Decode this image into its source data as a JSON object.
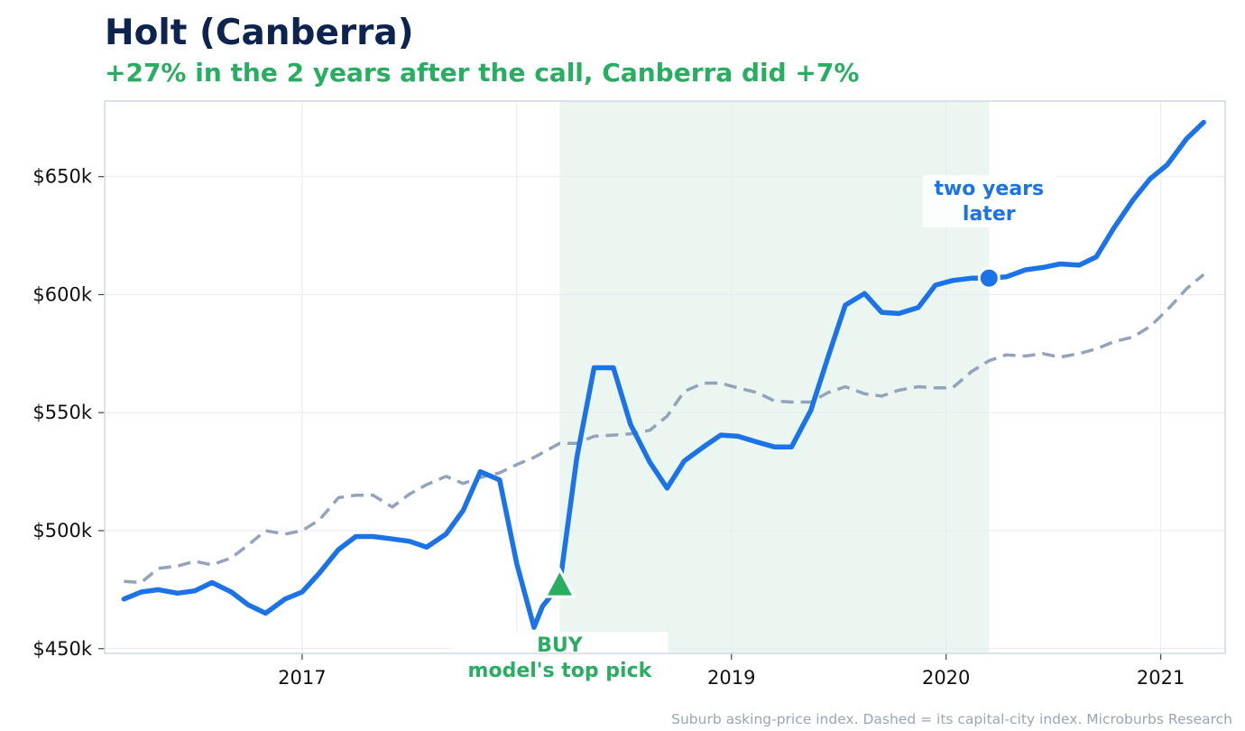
{
  "title": "Holt (Canberra)",
  "subtitle": "+27% in the 2 years after the call, Canberra did +7%",
  "footer": "Suburb asking-price index. Dashed = its capital-city index. Microburbs Research",
  "colors": {
    "suburb": "#1a73e8",
    "city": "#94a3bc",
    "buy": "#27ae60",
    "title": "#0d2350",
    "shade": "#eaf6ef"
  },
  "chart_data": {
    "type": "line",
    "x_format": "decimal-year",
    "xlim": [
      2016.08,
      2021.3
    ],
    "ylim": [
      448000,
      682000
    ],
    "x_ticks": [
      {
        "value": 2017,
        "label": "2017"
      },
      {
        "value": 2018,
        "label": "2018"
      },
      {
        "value": 2019,
        "label": "2019"
      },
      {
        "value": 2020,
        "label": "2020"
      },
      {
        "value": 2021,
        "label": "2021"
      }
    ],
    "y_ticks": [
      {
        "value": 450000,
        "label": "$450k"
      },
      {
        "value": 500000,
        "label": "$500k"
      },
      {
        "value": 550000,
        "label": "$550k"
      },
      {
        "value": 600000,
        "label": "$600k"
      },
      {
        "value": 650000,
        "label": "$650k"
      }
    ],
    "grid": true,
    "shaded_period": {
      "from": 2018.2,
      "to": 2020.2
    },
    "annotations": {
      "buy": {
        "x": 2018.2,
        "y": 477000,
        "label_line1": "BUY",
        "label_line2": "model's top pick"
      },
      "later": {
        "x": 2020.2,
        "y": 607000,
        "label_line1": "two years",
        "label_line2": "later"
      }
    },
    "series": [
      {
        "style": "solid",
        "x": [
          2016.17,
          2016.25,
          2016.33,
          2016.42,
          2016.5,
          2016.58,
          2016.67,
          2016.75,
          2016.83,
          2016.92,
          2017.0,
          2017.08,
          2017.17,
          2017.25,
          2017.33,
          2017.42,
          2017.5,
          2017.58,
          2017.67,
          2017.75,
          2017.83,
          2017.92,
          2018.0,
          2018.08,
          2018.12,
          2018.2,
          2018.28,
          2018.36,
          2018.45,
          2018.53,
          2018.62,
          2018.7,
          2018.78,
          2018.87,
          2018.95,
          2019.03,
          2019.12,
          2019.2,
          2019.28,
          2019.37,
          2019.45,
          2019.53,
          2019.62,
          2019.7,
          2019.78,
          2019.87,
          2019.95,
          2020.03,
          2020.12,
          2020.2,
          2020.28,
          2020.37,
          2020.45,
          2020.53,
          2020.62,
          2020.7,
          2020.78,
          2020.87,
          2020.95,
          2021.03,
          2021.12,
          2021.2
        ],
        "values": [
          471000,
          474000,
          475000,
          473500,
          474500,
          478000,
          474000,
          468500,
          465000,
          471000,
          474000,
          482000,
          492000,
          497500,
          497500,
          496500,
          495500,
          493000,
          498500,
          508500,
          525000,
          521500,
          486000,
          459000,
          468000,
          477000,
          531000,
          569000,
          569000,
          545000,
          529000,
          518000,
          529500,
          535500,
          540500,
          540000,
          537500,
          535500,
          535500,
          551000,
          573500,
          595500,
          600500,
          592500,
          592000,
          594500,
          604000,
          606000,
          607000,
          607000,
          607500,
          610500,
          611500,
          613000,
          612500,
          616000,
          628000,
          640000,
          649000,
          655000,
          666000,
          673000
        ]
      },
      {
        "style": "dashed",
        "x": [
          2016.17,
          2016.25,
          2016.33,
          2016.42,
          2016.5,
          2016.58,
          2016.67,
          2016.75,
          2016.83,
          2016.92,
          2017.0,
          2017.08,
          2017.17,
          2017.25,
          2017.33,
          2017.42,
          2017.5,
          2017.58,
          2017.67,
          2017.75,
          2017.83,
          2017.92,
          2018.0,
          2018.08,
          2018.2,
          2018.28,
          2018.36,
          2018.45,
          2018.53,
          2018.62,
          2018.7,
          2018.78,
          2018.87,
          2018.95,
          2019.03,
          2019.12,
          2019.2,
          2019.28,
          2019.37,
          2019.45,
          2019.53,
          2019.62,
          2019.7,
          2019.78,
          2019.87,
          2019.95,
          2020.03,
          2020.12,
          2020.2,
          2020.28,
          2020.37,
          2020.45,
          2020.53,
          2020.62,
          2020.7,
          2020.78,
          2020.87,
          2020.95,
          2021.03,
          2021.12,
          2021.2
        ],
        "values": [
          478500,
          478000,
          484000,
          485000,
          487000,
          485500,
          488500,
          494000,
          500000,
          498500,
          500000,
          504500,
          514000,
          515000,
          515000,
          510000,
          515500,
          519500,
          523000,
          520000,
          522500,
          524500,
          528000,
          531000,
          537000,
          537000,
          540000,
          540500,
          541000,
          542500,
          548500,
          559000,
          562500,
          562500,
          560500,
          558500,
          555000,
          554500,
          554500,
          558500,
          561000,
          558000,
          557000,
          559500,
          561000,
          560500,
          560500,
          567500,
          572000,
          574500,
          574000,
          575000,
          573500,
          575000,
          577000,
          580000,
          582000,
          586500,
          593500,
          602500,
          608500
        ]
      }
    ]
  }
}
